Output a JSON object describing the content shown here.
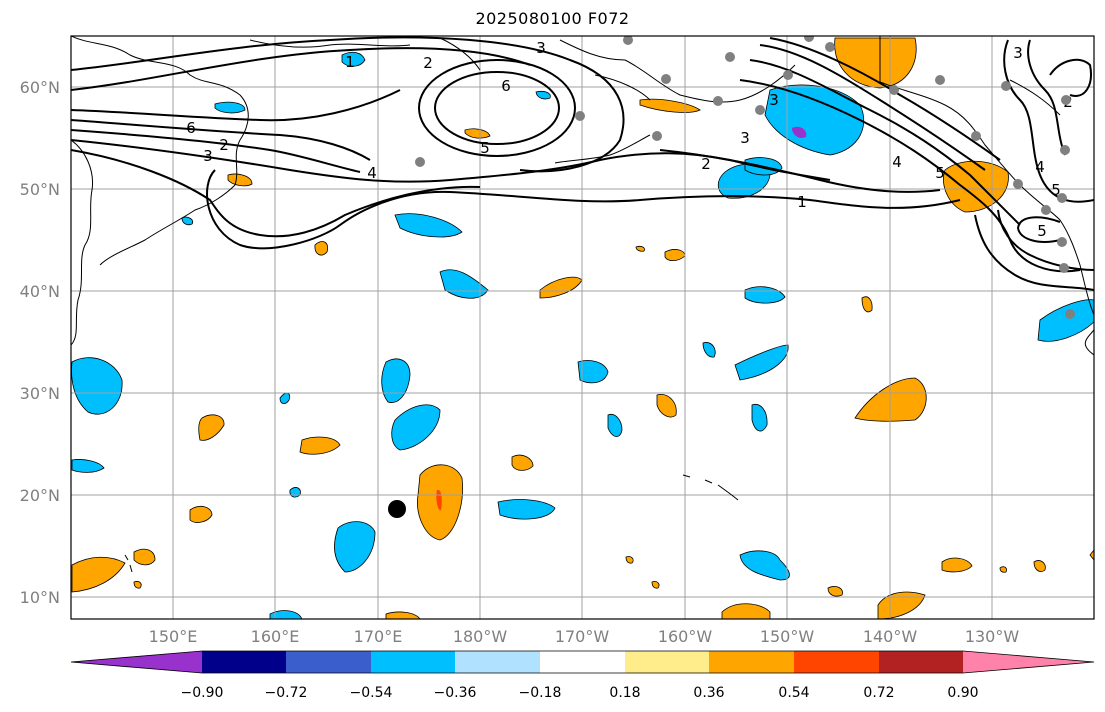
{
  "title": "2025080100 F072",
  "map": {
    "lat_labels": [
      "60°N",
      "50°N",
      "40°N",
      "30°N",
      "20°N",
      "10°N"
    ],
    "lon_labels": [
      "150°E",
      "160°E",
      "170°E",
      "180°W",
      "170°W",
      "160°W",
      "150°W",
      "140°W",
      "130°W"
    ],
    "contour_labels": [
      "1",
      "2",
      "3",
      "6",
      "5",
      "6",
      "3",
      "2",
      "4",
      "1",
      "2",
      "3",
      "4",
      "5",
      "3",
      "4",
      "5",
      "3",
      "2",
      "5"
    ]
  },
  "colorbar": {
    "ticks": [
      "−0.90",
      "−0.72",
      "−0.54",
      "−0.36",
      "−0.18",
      "0.18",
      "0.36",
      "0.54",
      "0.72",
      "0.90"
    ],
    "colors": [
      "#9932cc",
      "#00008b",
      "#3a5fcd",
      "#00bfff",
      "#b0e2ff",
      "#ffffff",
      "#ffec8b",
      "#ffa500",
      "#ff4500",
      "#b22222",
      "#ff82ab"
    ]
  }
}
